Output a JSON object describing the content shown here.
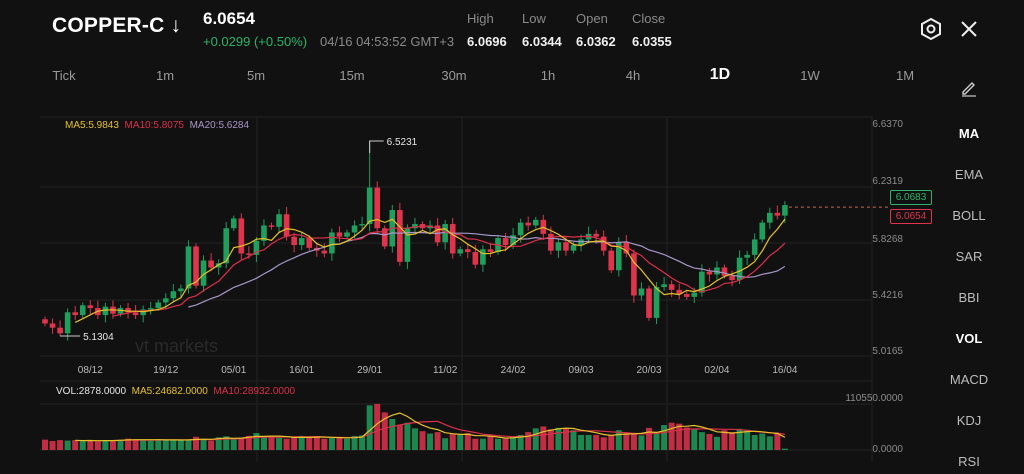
{
  "header": {
    "symbol": "COPPER-C ↓",
    "price": "6.0654",
    "change": "+0.0299 (+0.50%)",
    "timestamp": "04/16 04:53:52 GMT+3",
    "stats": [
      {
        "label": "High",
        "value": "6.0696"
      },
      {
        "label": "Low",
        "value": "6.0344"
      },
      {
        "label": "Open",
        "value": "6.0362"
      },
      {
        "label": "Close",
        "value": "6.0355"
      }
    ],
    "icons": [
      "settings-hexagon-icon",
      "close-icon"
    ]
  },
  "timeframes": [
    "Tick",
    "1m",
    "5m",
    "15m",
    "30m",
    "1h",
    "4h",
    "1D",
    "1W",
    "1M"
  ],
  "active_timeframe": "1D",
  "indicators": [
    "MA",
    "EMA",
    "BOLL",
    "SAR",
    "BBI",
    "VOL",
    "MACD",
    "KDJ",
    "RSI"
  ],
  "active_indicators": [
    "MA",
    "VOL"
  ],
  "draw_tool_icon": "pencil-icon",
  "watermark": "vt markets",
  "colors": {
    "up": "#1f9e5c",
    "down": "#e0344c",
    "ma5": "#e6c229",
    "ma10": "#dc2f4b",
    "ma20": "#a797c8",
    "background": "#111111"
  },
  "legend": {
    "ma5": "MA5:5.9843",
    "ma10": "MA10:5.8075",
    "ma20": "MA20:5.6284"
  },
  "vol_legend": {
    "vol": "VOL:2878.0000",
    "ma5": "MA5:24682.0000",
    "ma10": "MA10:28932.0000"
  },
  "price_axis": [
    "6.6370",
    "6.2319",
    "5.8268",
    "5.4216",
    "5.0165"
  ],
  "vol_axis": [
    "110550.0000",
    "0.0000"
  ],
  "price_tags": {
    "bid": "6.0683",
    "last": "6.0654"
  },
  "chart_data": {
    "type": "candlestick",
    "ylim": [
      5.0165,
      6.637
    ],
    "max_label": "6.5231",
    "min_label": "5.1304",
    "max_value": 6.5231,
    "min_value": 5.1304,
    "x_labels": [
      {
        "label": "08/12",
        "index": 6
      },
      {
        "label": "19/12",
        "index": 16
      },
      {
        "label": "05/01",
        "index": 25
      },
      {
        "label": "16/01",
        "index": 34
      },
      {
        "label": "29/01",
        "index": 43
      },
      {
        "label": "11/02",
        "index": 53
      },
      {
        "label": "24/02",
        "index": 62
      },
      {
        "label": "09/03",
        "index": 71
      },
      {
        "label": "20/03",
        "index": 80
      },
      {
        "label": "02/04",
        "index": 89
      },
      {
        "label": "16/04",
        "index": 98
      }
    ],
    "closes": [
      5.22,
      5.19,
      5.15,
      5.3,
      5.28,
      5.35,
      5.33,
      5.28,
      5.34,
      5.29,
      5.33,
      5.3,
      5.28,
      5.32,
      5.33,
      5.37,
      5.4,
      5.45,
      5.47,
      5.77,
      5.49,
      5.67,
      5.62,
      5.65,
      5.9,
      5.97,
      5.72,
      5.71,
      5.81,
      5.92,
      5.91,
      6.0,
      5.84,
      5.78,
      5.83,
      5.76,
      5.74,
      5.72,
      5.87,
      5.84,
      5.87,
      5.92,
      5.93,
      6.19,
      5.9,
      5.77,
      6.03,
      5.66,
      5.9,
      5.93,
      5.9,
      5.92,
      5.8,
      5.93,
      5.72,
      5.75,
      5.73,
      5.64,
      5.75,
      5.73,
      5.83,
      5.78,
      5.85,
      5.94,
      5.92,
      5.96,
      5.86,
      5.74,
      5.8,
      5.74,
      5.78,
      5.82,
      5.86,
      5.84,
      5.74,
      5.6,
      5.8,
      5.72,
      5.42,
      5.47,
      5.26,
      5.48,
      5.5,
      5.46,
      5.43,
      5.41,
      5.44,
      5.59,
      5.57,
      5.62,
      5.56,
      5.53,
      5.69,
      5.71,
      5.82,
      5.94,
      6.01,
      5.99,
      6.0654
    ],
    "volumes": [
      22000,
      19000,
      21000,
      20000,
      21000,
      19000,
      20000,
      19000,
      21000,
      21000,
      22000,
      24000,
      21000,
      22000,
      20000,
      23000,
      21000,
      21000,
      21000,
      21000,
      28000,
      24000,
      20000,
      27000,
      29000,
      24000,
      26000,
      30000,
      36000,
      29000,
      27000,
      26000,
      24000,
      28000,
      30000,
      26000,
      29000,
      24000,
      26000,
      27000,
      24000,
      30000,
      31000,
      95000,
      98000,
      80000,
      66000,
      54000,
      58000,
      46000,
      40000,
      35000,
      38000,
      25000,
      35000,
      33000,
      36000,
      24000,
      24000,
      30000,
      24000,
      24000,
      28000,
      32000,
      38000,
      46000,
      50000,
      44000,
      47000,
      46000,
      42000,
      32000,
      32000,
      32000,
      27000,
      32000,
      42000,
      36000,
      35000,
      31000,
      47000,
      38000,
      53000,
      58000,
      56000,
      48000,
      45000,
      38000,
      34000,
      28000,
      42000,
      38000,
      45000,
      43000,
      32000,
      35000,
      29000,
      36000,
      2878
    ]
  }
}
